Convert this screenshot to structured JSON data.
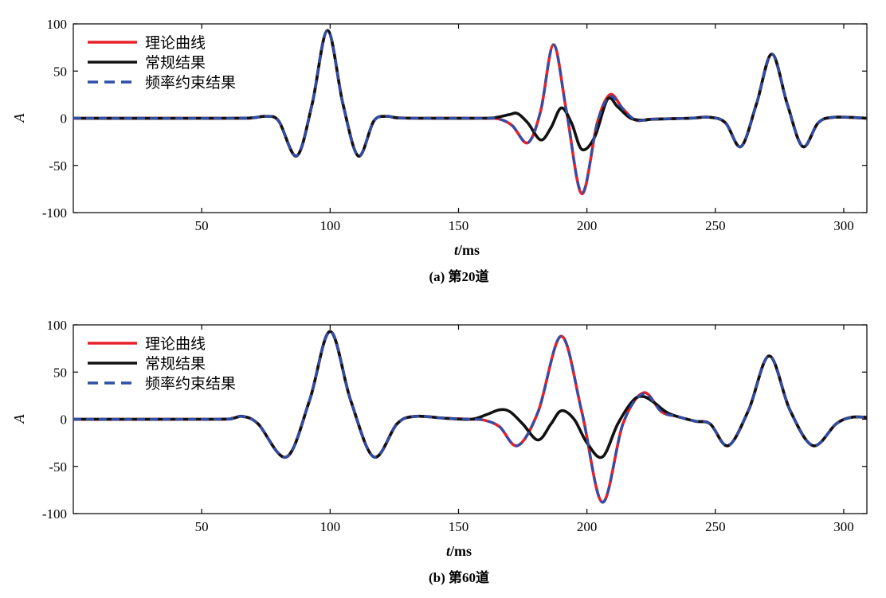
{
  "chart_data": [
    {
      "type": "line",
      "caption": "(a) 第20道",
      "xlabel_italic": "t",
      "xlabel_unit": "/ms",
      "ylabel": "A",
      "xlim": [
        0,
        309
      ],
      "ylim": [
        -100,
        100
      ],
      "xticks": [
        50,
        100,
        150,
        200,
        250,
        300
      ],
      "yticks": [
        100,
        50,
        0,
        -50,
        -100
      ],
      "legend_position": "top-left",
      "grid": false,
      "series": [
        {
          "name": "理论曲线",
          "color": "#e8202a",
          "style": "solid",
          "x": [
            0,
            60,
            70,
            75,
            80,
            87,
            93,
            99,
            105,
            111,
            117,
            122,
            126,
            135,
            160,
            166,
            171,
            177,
            182,
            187,
            192,
            198,
            204,
            209,
            214,
            219,
            225,
            240,
            248,
            254,
            260,
            266,
            272,
            278,
            284,
            290,
            296,
            309
          ],
          "y": [
            0,
            0,
            0.5,
            2,
            -3,
            -40,
            15,
            93,
            15,
            -40,
            -3,
            2,
            0.5,
            0,
            0,
            -1,
            -8,
            -26,
            8,
            78,
            8,
            -80,
            -5,
            25,
            10,
            -2,
            -1,
            0,
            1,
            -5,
            -30,
            15,
            68,
            15,
            -30,
            -5,
            1,
            0
          ]
        },
        {
          "name": "常规结果",
          "color": "#111111",
          "style": "solid",
          "x": [
            0,
            60,
            70,
            75,
            80,
            87,
            93,
            99,
            105,
            111,
            117,
            122,
            126,
            135,
            160,
            165,
            170,
            173,
            177,
            182,
            186,
            190,
            194,
            198,
            203,
            208,
            212,
            217,
            222,
            226,
            240,
            248,
            254,
            260,
            266,
            272,
            278,
            284,
            290,
            296,
            309
          ],
          "y": [
            0,
            0,
            0.5,
            2,
            -3,
            -40,
            15,
            93,
            15,
            -40,
            -3,
            2,
            0.5,
            0,
            0,
            1,
            4,
            5,
            -5,
            -23,
            -10,
            11,
            -5,
            -33,
            -20,
            20,
            12,
            0,
            -2,
            -1,
            0,
            1,
            -5,
            -30,
            15,
            68,
            15,
            -30,
            -5,
            1,
            0
          ]
        },
        {
          "name": "频率约束结果",
          "color": "#2e4fa8",
          "style": "dashed",
          "x": [
            0,
            60,
            70,
            75,
            80,
            87,
            93,
            99,
            105,
            111,
            117,
            122,
            126,
            135,
            160,
            166,
            171,
            177,
            182,
            187,
            192,
            198,
            204,
            209,
            214,
            219,
            225,
            240,
            248,
            254,
            260,
            266,
            272,
            278,
            284,
            290,
            296,
            309
          ],
          "y": [
            0,
            0,
            0.5,
            2,
            -3,
            -40,
            15,
            93,
            15,
            -40,
            -3,
            2,
            0.5,
            0,
            0,
            -1,
            -8,
            -26,
            8,
            78,
            8,
            -79,
            -5,
            23,
            10,
            -2,
            -1,
            0,
            1,
            -5,
            -30,
            15,
            68,
            15,
            -30,
            -5,
            1,
            0
          ]
        }
      ]
    },
    {
      "type": "line",
      "caption": "(b) 第60道",
      "xlabel_italic": "t",
      "xlabel_unit": "/ms",
      "ylabel": "A",
      "xlim": [
        0,
        309
      ],
      "ylim": [
        -100,
        100
      ],
      "xticks": [
        50,
        100,
        150,
        200,
        250,
        300
      ],
      "yticks": [
        100,
        50,
        0,
        -50,
        -100
      ],
      "legend_position": "top-left",
      "grid": false,
      "series": [
        {
          "name": "理论曲线",
          "color": "#e8202a",
          "style": "solid",
          "x": [
            0,
            55,
            62,
            66,
            72,
            83,
            92,
            100,
            108,
            117,
            126,
            133,
            145,
            155,
            160,
            166,
            173,
            181,
            190,
            198,
            206,
            214,
            222,
            229,
            235,
            242,
            248,
            255,
            263,
            271,
            279,
            288,
            297,
            303,
            309
          ],
          "y": [
            0,
            0,
            1,
            3,
            -5,
            -40,
            20,
            93,
            20,
            -40,
            -5,
            3,
            1,
            0,
            -1,
            -8,
            -28,
            8,
            88,
            8,
            -88,
            -5,
            28,
            8,
            3,
            -2,
            -5,
            -28,
            10,
            67,
            10,
            -28,
            -5,
            2,
            2
          ]
        },
        {
          "name": "常规结果",
          "color": "#111111",
          "style": "solid",
          "x": [
            0,
            55,
            62,
            66,
            72,
            83,
            92,
            100,
            108,
            117,
            126,
            133,
            145,
            155,
            161,
            166,
            170,
            175,
            181,
            186,
            190,
            195,
            200,
            206,
            212,
            218,
            222,
            226,
            232,
            242,
            248,
            255,
            263,
            271,
            279,
            288,
            297,
            303,
            309
          ],
          "y": [
            0,
            0,
            1,
            3,
            -5,
            -40,
            20,
            93,
            20,
            -40,
            -5,
            3,
            1,
            0,
            5,
            10,
            8,
            -5,
            -22,
            -5,
            9,
            0,
            -25,
            -40,
            -5,
            20,
            24,
            18,
            6,
            -2,
            -5,
            -28,
            10,
            67,
            10,
            -28,
            -5,
            2,
            2
          ]
        },
        {
          "name": "频率约束结果",
          "color": "#2e4fa8",
          "style": "dashed",
          "x": [
            0,
            55,
            62,
            66,
            72,
            83,
            92,
            100,
            108,
            117,
            126,
            133,
            145,
            155,
            160,
            166,
            173,
            181,
            190,
            198,
            206,
            214,
            222,
            229,
            235,
            242,
            248,
            255,
            263,
            271,
            279,
            288,
            297,
            303,
            309
          ],
          "y": [
            0,
            0,
            1,
            3,
            -5,
            -40,
            20,
            93,
            20,
            -40,
            -5,
            3,
            1,
            0,
            -1,
            -8,
            -28,
            8,
            88,
            8,
            -88,
            -5,
            27,
            8,
            3,
            -2,
            -5,
            -28,
            10,
            67,
            10,
            -28,
            -5,
            2,
            2
          ]
        }
      ]
    }
  ]
}
